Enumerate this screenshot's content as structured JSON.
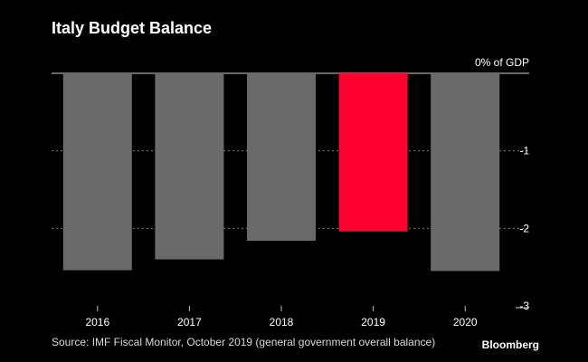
{
  "title": "Italy Budget Balance",
  "source": "Source: IMF Fiscal Monitor, October 2019 (general government overall balance)",
  "brand": "Bloomberg",
  "colors": {
    "background": "#000000",
    "bar": "#6a6a6a",
    "highlight": "#ff0033",
    "text": "#ffffff",
    "grid": "#8a8a8a"
  },
  "chart_data": {
    "type": "bar",
    "title": "Italy Budget Balance",
    "categories": [
      "2016",
      "2017",
      "2018",
      "2019",
      "2020"
    ],
    "values": [
      -2.54,
      -2.4,
      -2.16,
      -2.04,
      -2.55
    ],
    "highlight": "2019",
    "ylabel": "% of GDP",
    "ylim": [
      -3,
      0
    ],
    "yticks": [
      0,
      -1,
      -2,
      -3
    ],
    "ytick_labels": [
      "0% of GDP",
      "-1",
      "-2",
      "-3"
    ],
    "grid": true,
    "yaxis_side": "right"
  }
}
